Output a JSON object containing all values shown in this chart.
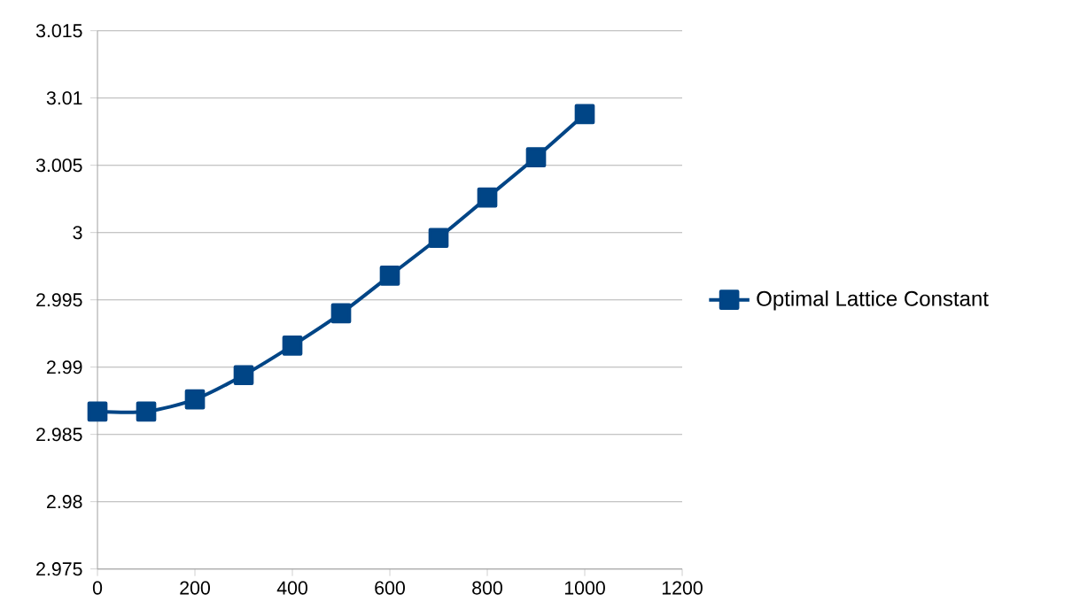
{
  "chart_data": {
    "type": "line",
    "x": [
      0,
      100,
      200,
      300,
      400,
      500,
      600,
      700,
      800,
      900,
      1000
    ],
    "series": [
      {
        "name": "Optimal Lattice Constant",
        "color": "#004586",
        "values": [
          2.9867,
          2.9867,
          2.9876,
          2.9894,
          2.9916,
          2.994,
          2.9968,
          2.9996,
          3.0026,
          3.0056,
          3.0088
        ]
      }
    ],
    "xlim": [
      0,
      1200
    ],
    "xticks": [
      0,
      200,
      400,
      600,
      800,
      1000,
      1200
    ],
    "ylim": [
      2.975,
      3.015
    ],
    "yticks": [
      2.975,
      2.98,
      2.985,
      2.99,
      2.995,
      3,
      3.005,
      3.01,
      3.015
    ],
    "grid": "y",
    "legend": "right",
    "marker": "square",
    "line_style": "solid"
  }
}
